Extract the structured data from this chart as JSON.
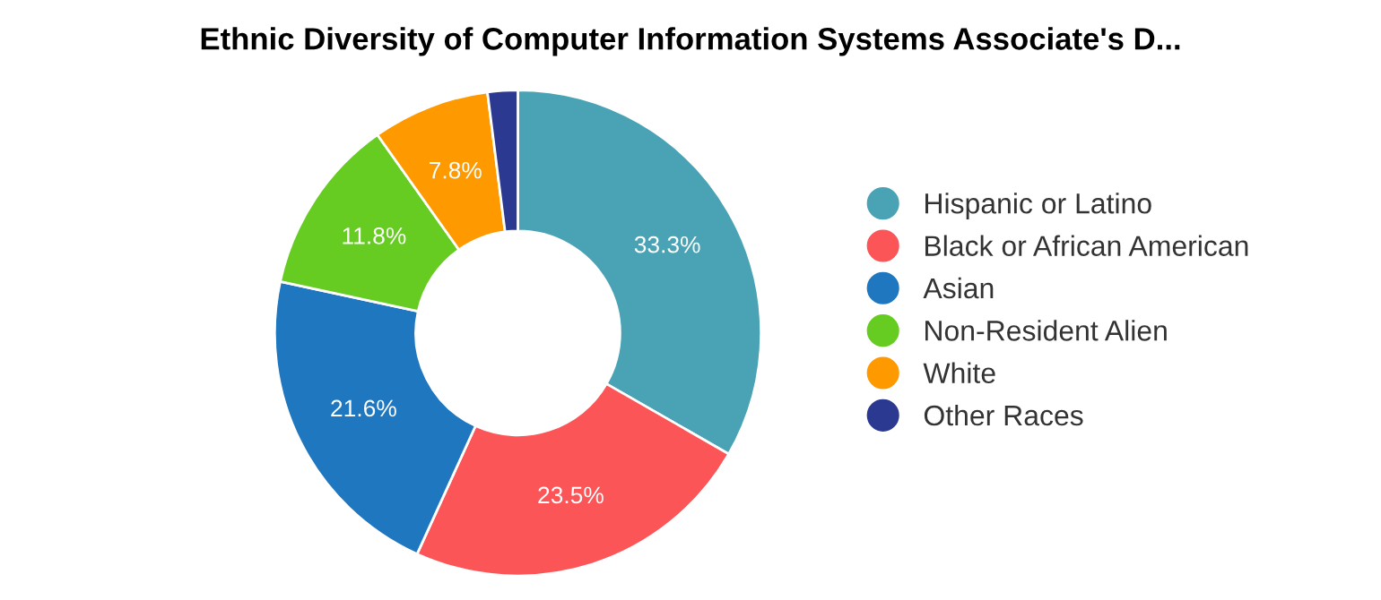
{
  "chart_data": {
    "type": "donut",
    "title": "Ethnic Diversity of Computer Information Systems Associate's D...",
    "categories": [
      "Hispanic or Latino",
      "Black or African American",
      "Asian",
      "Non-Resident Alien",
      "White",
      "Other Races"
    ],
    "values": [
      33.3,
      23.5,
      21.6,
      11.8,
      7.8,
      2.0
    ],
    "colors": [
      "#4aa3b5",
      "#fb5557",
      "#1f77c0",
      "#66cc22",
      "#ff9900",
      "#2b3990"
    ],
    "value_labels": [
      "33.3%",
      "23.5%",
      "21.6%",
      "11.8%",
      "7.8%",
      null
    ],
    "legend": "right"
  }
}
